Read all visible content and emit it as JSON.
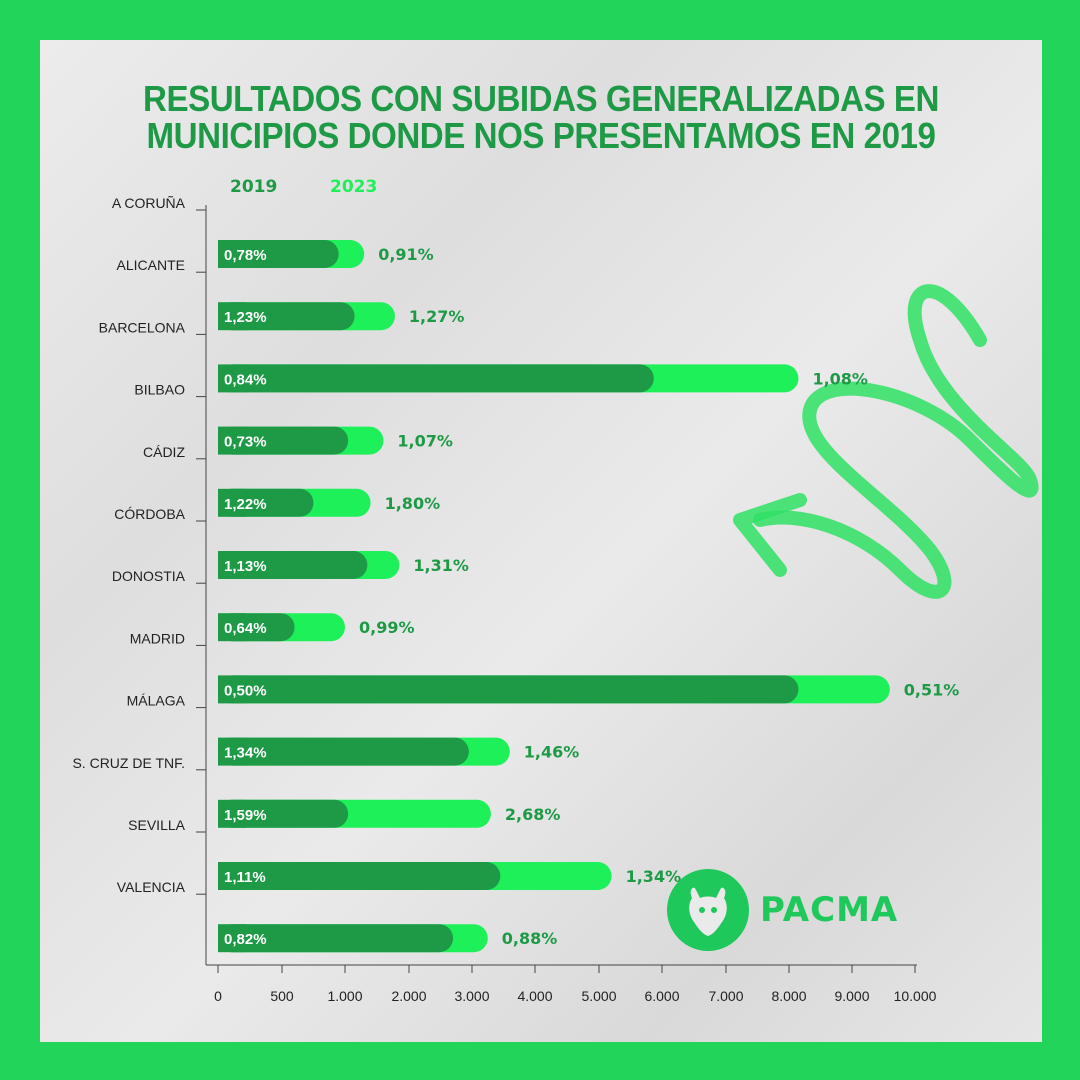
{
  "title": {
    "line1": "RESULTADOS CON SUBIDAS GENERALIZADAS EN",
    "line2": "MUNICIPIOS DONDE NOS PRESENTAMOS EN 2019"
  },
  "brand": {
    "name": "PACMA"
  },
  "colors": {
    "background": "#23d45a",
    "bar_2019": "#1e9a47",
    "bar_2023": "#1ef05a",
    "title": "#1e9a47",
    "label_2023": "#1e9a47"
  },
  "chart_data": {
    "type": "bar",
    "orientation": "horizontal",
    "title": "RESULTADOS CON SUBIDAS GENERALIZADAS EN MUNICIPIOS DONDE NOS PRESENTAMOS EN 2019",
    "categories": [
      "A CORUÑA",
      "ALICANTE",
      "BARCELONA",
      "BILBAO",
      "CÁDIZ",
      "CÓRDOBA",
      "DONOSTIA",
      "MADRID",
      "MÁLAGA",
      "S. CRUZ DE TNF.",
      "SEVILLA",
      "VALENCIA"
    ],
    "series": [
      {
        "name": "2019",
        "values": [
          950,
          1150,
          5870,
          1050,
          750,
          1350,
          600,
          8150,
          2950,
          1050,
          3450,
          2700
        ],
        "labels": [
          "0,78%",
          "1,23%",
          "0,84%",
          "0,73%",
          "1,22%",
          "1,13%",
          "0,64%",
          "0,50%",
          "1,34%",
          "1,59%",
          "1,11%",
          "0,82%"
        ]
      },
      {
        "name": "2023",
        "values": [
          1300,
          1780,
          8150,
          1600,
          1400,
          1850,
          1000,
          9600,
          3600,
          3300,
          5200,
          3250
        ],
        "labels": [
          "0,91%",
          "1,27%",
          "1,08%",
          "1,07%",
          "1,80%",
          "1,31%",
          "0,99%",
          "0,51%",
          "1,46%",
          "2,68%",
          "1,34%",
          "0,88%"
        ]
      }
    ],
    "xlim": [
      0,
      10000
    ],
    "x_ticks": [
      0,
      500,
      1000,
      2000,
      3000,
      4000,
      5000,
      6000,
      7000,
      8000,
      9000,
      10000
    ],
    "x_tick_labels": [
      "0",
      "500",
      "1.000",
      "2.000",
      "3.000",
      "4.000",
      "5.000",
      "6.000",
      "7.000",
      "8.000",
      "9.000",
      "10.000"
    ],
    "grid": false,
    "legend": "top-left"
  }
}
